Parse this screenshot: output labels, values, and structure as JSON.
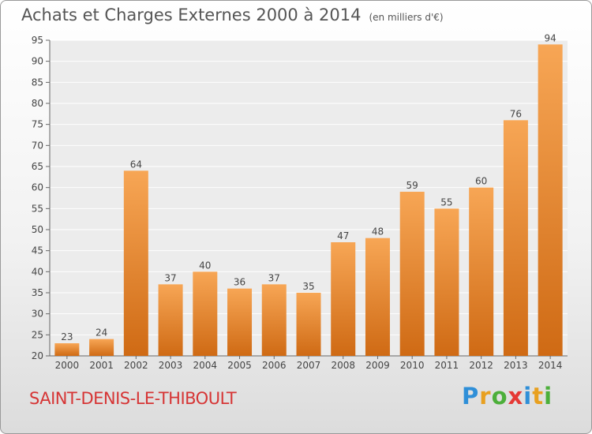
{
  "title": "Achats et Charges Externes 2000 à 2014",
  "title_unit": "(en milliers d'€)",
  "commune": "SAINT-DENIS-LE-THIBOULT",
  "logo": {
    "letters": [
      "P",
      "r",
      "o",
      "x",
      "i",
      "t",
      "i"
    ],
    "colors": [
      "#2f8fd8",
      "#e8a020",
      "#4caf3a",
      "#e53935",
      "#2f8fd8",
      "#e8a020",
      "#4caf3a"
    ]
  },
  "chart_data": {
    "type": "bar",
    "title": "Achats et Charges Externes 2000 à 2014",
    "subtitle": "(en milliers d'€)",
    "categories": [
      "2000",
      "2001",
      "2002",
      "2003",
      "2004",
      "2005",
      "2006",
      "2007",
      "2008",
      "2009",
      "2010",
      "2011",
      "2012",
      "2013",
      "2014"
    ],
    "values": [
      23,
      24,
      64,
      37,
      40,
      36,
      37,
      35,
      47,
      48,
      59,
      55,
      60,
      76,
      94
    ],
    "ylim": [
      20,
      95
    ],
    "yticks": [
      20,
      25,
      30,
      35,
      40,
      45,
      50,
      55,
      60,
      65,
      70,
      75,
      80,
      85,
      90,
      95
    ],
    "grid": true,
    "bar_color": "#f0943a"
  }
}
